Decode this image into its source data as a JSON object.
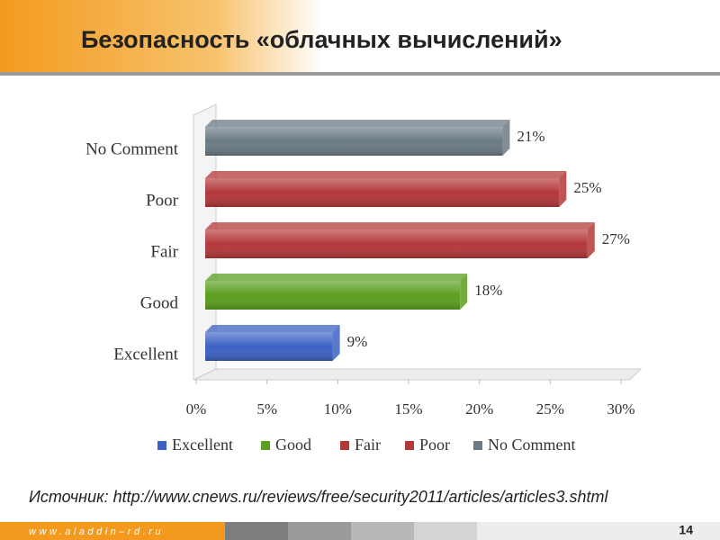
{
  "header": {
    "title": "Безопасность «облачных вычислений»"
  },
  "chart_data": {
    "type": "bar",
    "orientation": "horizontal",
    "categories": [
      "Excellent",
      "Good",
      "Fair",
      "Poor",
      "No Comment"
    ],
    "values": [
      9,
      18,
      27,
      25,
      21
    ],
    "value_labels": [
      "9%",
      "18%",
      "27%",
      "25%",
      "21%"
    ],
    "colors": [
      "#3c62c4",
      "#5c9e1f",
      "#b3383a",
      "#b3383a",
      "#6b7a84"
    ],
    "xlim": [
      0,
      30
    ],
    "xticks": [
      {
        "value": 0,
        "label": "0%"
      },
      {
        "value": 5,
        "label": "5%"
      },
      {
        "value": 10,
        "label": "10%"
      },
      {
        "value": 15,
        "label": "15%"
      },
      {
        "value": 20,
        "label": "20%"
      },
      {
        "value": 25,
        "label": "25%"
      },
      {
        "value": 30,
        "label": "30%"
      }
    ],
    "legend": "bottom",
    "grid": false
  },
  "source": "Источник: http://www.cnews.ru/reviews/free/security2011/articles/articles3.shtml",
  "footer": {
    "url": "www.aladdin–rd.ru",
    "page": "14"
  }
}
